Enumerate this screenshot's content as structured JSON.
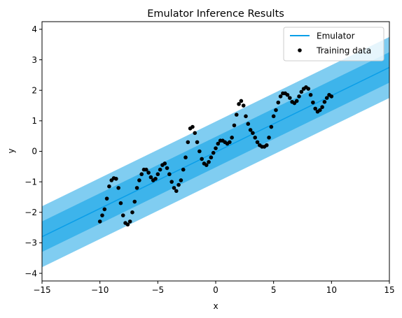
{
  "chart_data": {
    "type": "line",
    "title": "Emulator Inference Results",
    "xlabel": "x",
    "ylabel": "y",
    "xlim": [
      -15,
      15
    ],
    "ylim": [
      -4.25,
      4.25
    ],
    "xticks": [
      -15,
      -10,
      -5,
      0,
      5,
      10,
      15
    ],
    "yticks": [
      -4,
      -3,
      -2,
      -1,
      0,
      1,
      2,
      3,
      4
    ],
    "grid": false,
    "legend_position": "top-right",
    "legend": [
      "Emulator",
      "Training data"
    ],
    "colors": {
      "emulator_line": "#0a9ee8",
      "band_inner": "#3db4eb",
      "band_outer": "#80cdf1",
      "points": "#000000"
    },
    "emulator": {
      "name": "Emulator",
      "x": [
        -15,
        15
      ],
      "y": [
        -2.8,
        2.75
      ],
      "band_inner_halfwidth": 0.5,
      "band_outer_halfwidth": 1.0
    },
    "training_data": {
      "name": "Training data",
      "x": [
        -10,
        -9.8,
        -9.6,
        -9.4,
        -9.2,
        -9,
        -8.8,
        -8.6,
        -8.4,
        -8.2,
        -8,
        -7.8,
        -7.6,
        -7.4,
        -7.2,
        -7,
        -6.8,
        -6.6,
        -6.4,
        -6.2,
        -6,
        -5.8,
        -5.6,
        -5.4,
        -5.2,
        -5,
        -4.8,
        -4.6,
        -4.4,
        -4.2,
        -4,
        -3.8,
        -3.6,
        -3.4,
        -3.2,
        -3,
        -2.8,
        -2.6,
        -2.4,
        -2.2,
        -2,
        -1.8,
        -1.6,
        -1.4,
        -1.2,
        -1,
        -0.8,
        -0.6,
        -0.4,
        -0.2,
        0,
        0.2,
        0.4,
        0.6,
        0.8,
        1,
        1.2,
        1.4,
        1.6,
        1.8,
        2,
        2.2,
        2.4,
        2.6,
        2.8,
        3,
        3.2,
        3.4,
        3.6,
        3.8,
        4,
        4.2,
        4.4,
        4.6,
        4.8,
        5,
        5.2,
        5.4,
        5.6,
        5.8,
        6,
        6.2,
        6.4,
        6.6,
        6.8,
        7,
        7.2,
        7.4,
        7.6,
        7.8,
        8,
        8.2,
        8.4,
        8.6,
        8.8,
        9,
        9.2,
        9.4,
        9.6,
        9.8,
        10
      ],
      "y": [
        -2.3,
        -2.1,
        -1.9,
        -1.55,
        -1.15,
        -0.95,
        -0.88,
        -0.9,
        -1.2,
        -1.7,
        -2.1,
        -2.35,
        -2.4,
        -2.3,
        -2,
        -1.65,
        -1.2,
        -0.95,
        -0.75,
        -0.6,
        -0.6,
        -0.7,
        -0.85,
        -0.95,
        -0.9,
        -0.75,
        -0.6,
        -0.45,
        -0.4,
        -0.55,
        -0.75,
        -1.0,
        -1.2,
        -1.3,
        -1.1,
        -0.95,
        -0.6,
        -0.2,
        0.3,
        0.75,
        0.8,
        0.6,
        0.3,
        0.0,
        -0.25,
        -0.4,
        -0.45,
        -0.35,
        -0.2,
        -0.05,
        0.1,
        0.25,
        0.35,
        0.35,
        0.3,
        0.25,
        0.3,
        0.45,
        0.85,
        1.2,
        1.55,
        1.65,
        1.5,
        1.15,
        0.9,
        0.7,
        0.6,
        0.45,
        0.3,
        0.2,
        0.15,
        0.15,
        0.2,
        0.45,
        0.8,
        1.15,
        1.35,
        1.6,
        1.8,
        1.9,
        1.9,
        1.85,
        1.75,
        1.62,
        1.58,
        1.65,
        1.8,
        1.95,
        2.05,
        2.1,
        2.05,
        1.85,
        1.6,
        1.4,
        1.3,
        1.35,
        1.45,
        1.62,
        1.75,
        1.85,
        1.8
      ]
    }
  }
}
